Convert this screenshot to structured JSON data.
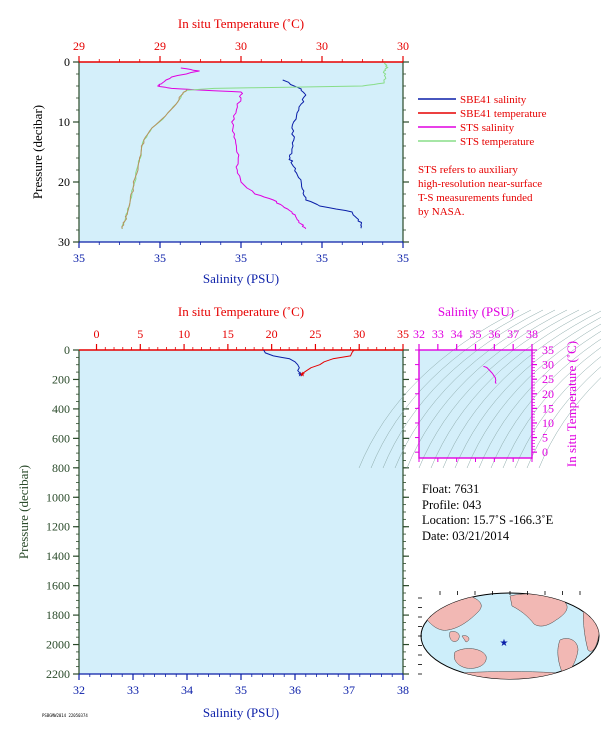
{
  "colors": {
    "red": "#e60000",
    "blue": "#0a1ea8",
    "magenta": "#e000e0",
    "green": "#88dd88",
    "temp_profile": "#b89060",
    "plot_bg": "#d4effa",
    "dark_green": "#2a4a2a",
    "isoline": "#8aa8a8"
  },
  "chart_data": [
    {
      "type": "line",
      "panel": "top",
      "x_top_label": "In situ Temperature (˚C)",
      "x_top_ticks": [
        "29",
        "29",
        "30",
        "30",
        "30"
      ],
      "x_bottom_label": "Salinity (PSU)",
      "x_bottom_ticks": [
        "35",
        "35",
        "35",
        "35",
        "35"
      ],
      "ylabel": "Pressure (decibar)",
      "y_ticks": [
        "0",
        "10",
        "20",
        "30"
      ],
      "ylim": [
        0,
        30
      ],
      "temp_range": [
        28.8,
        30.0
      ],
      "sal_range": [
        34.9,
        35.25
      ],
      "legend": [
        "SBE41 salinity",
        "SBE41 temperature",
        "STS salinity",
        "STS temperature"
      ],
      "note": [
        "STS refers to auxiliary",
        "high-resolution near-surface",
        "T-S measurements funded",
        "by NASA."
      ],
      "series": [
        {
          "name": "SBE41 salinity",
          "color": "blue",
          "p": [
            3.0,
            4.5,
            5.5,
            7,
            9,
            11,
            13,
            15,
            16,
            17,
            18.5,
            20,
            21.5,
            23,
            24,
            25,
            26,
            27,
            27.7
          ],
          "x": [
            35.12,
            35.14,
            35.145,
            35.14,
            35.135,
            35.13,
            35.132,
            35.13,
            35.128,
            35.13,
            35.135,
            35.14,
            35.143,
            35.145,
            35.16,
            35.195,
            35.2,
            35.205,
            35.205
          ]
        },
        {
          "name": "STS salinity",
          "color": "magenta",
          "p": [
            1.0,
            1.5,
            2.5,
            3.5,
            4.0,
            4.4,
            4.7,
            5.0,
            6,
            8,
            10,
            12,
            14,
            16,
            18,
            20,
            22,
            23,
            24,
            25,
            26,
            27,
            27.8
          ],
          "x": [
            35.01,
            35.03,
            35.0,
            34.99,
            34.985,
            35.0,
            35.035,
            35.075,
            35.075,
            35.07,
            35.065,
            35.068,
            35.07,
            35.072,
            35.071,
            35.075,
            35.09,
            35.11,
            35.12,
            35.13,
            35.135,
            35.14,
            35.145
          ]
        },
        {
          "name": "STS temperature",
          "color": "green",
          "p": [
            0.2,
            0.6,
            1.0,
            1.5,
            2.5,
            3.5,
            4.0,
            4.4,
            4.7,
            5.5,
            7,
            9,
            11,
            13,
            15,
            17,
            19,
            21,
            23,
            25,
            26.5,
            27.8
          ],
          "x": [
            29.93,
            29.94,
            29.94,
            29.93,
            29.935,
            29.93,
            29.85,
            29.3,
            29.2,
            29.18,
            29.16,
            29.12,
            29.07,
            29.04,
            29.03,
            29.02,
            29.01,
            29.0,
            28.99,
            28.98,
            28.97,
            28.96
          ]
        },
        {
          "name": "SBE41 temperature",
          "color": "temp_profile",
          "p": [
            4.6,
            5.5,
            7,
            9,
            11,
            13,
            15,
            17,
            19,
            21,
            23,
            25,
            26.5,
            27.8
          ],
          "x": [
            29.2,
            29.18,
            29.16,
            29.12,
            29.07,
            29.04,
            29.03,
            29.02,
            29.01,
            29.0,
            28.99,
            28.98,
            28.97,
            28.96
          ]
        }
      ]
    },
    {
      "type": "line",
      "panel": "bottom",
      "x_top_label": "In situ Temperature (˚C)",
      "x_top_ticks": [
        "0",
        "5",
        "10",
        "15",
        "20",
        "25",
        "30",
        "35"
      ],
      "xlim_top": [
        -2,
        35
      ],
      "x_bottom_label": "Salinity (PSU)",
      "x_bottom_ticks": [
        "32",
        "33",
        "34",
        "35",
        "36",
        "37",
        "38"
      ],
      "xlim_bottom": [
        32,
        38
      ],
      "ylabel": "Pressure (decibar)",
      "y_ticks": [
        "0",
        "200",
        "400",
        "600",
        "800",
        "1000",
        "1200",
        "1400",
        "1600",
        "1800",
        "2000",
        "2200"
      ],
      "ylim": [
        0,
        2200
      ],
      "series": [
        {
          "name": "salinity",
          "color": "blue",
          "p": [
            0,
            20,
            40,
            50,
            60,
            80,
            100,
            120,
            140,
            160
          ],
          "x": [
            35.42,
            35.45,
            35.6,
            35.75,
            35.9,
            36.0,
            36.05,
            36.08,
            36.05,
            36.1
          ]
        },
        {
          "name": "temperature",
          "color": "red",
          "p": [
            0,
            15,
            40,
            60,
            80,
            100,
            120,
            140,
            160
          ],
          "x": [
            29.4,
            29.2,
            29.0,
            27.0,
            26.0,
            25.5,
            24.5,
            24.0,
            23.5
          ]
        }
      ]
    },
    {
      "type": "scatter",
      "panel": "ts-diagram",
      "x_top_label": "Salinity (PSU)",
      "x_ticks": [
        "32",
        "33",
        "34",
        "35",
        "36",
        "37",
        "38"
      ],
      "xlim": [
        32,
        38
      ],
      "ylabel": "In situ Temperature (˚C)",
      "y_ticks": [
        "0",
        "5",
        "10",
        "15",
        "20",
        "25",
        "30",
        "35"
      ],
      "ylim": [
        -2,
        35
      ],
      "series": [
        {
          "name": "profile",
          "color": "magenta",
          "x": [
            35.42,
            35.6,
            35.75,
            35.9,
            36.0,
            36.05,
            36.08,
            36.05,
            36.1
          ],
          "y": [
            29.4,
            29.0,
            28.0,
            27.0,
            26.0,
            25.5,
            24.5,
            24.0,
            23.5
          ]
        }
      ]
    }
  ],
  "info": {
    "float": "Float:  7631",
    "profile": "Profile:  043",
    "location": "Location:  15.7˚S  -166.3˚E",
    "date": "Date:  03/21/2014"
  },
  "map": {
    "marker_lon": -166.3,
    "marker_lat": -15.7
  },
  "footer": "PSBGMW2014 22050374"
}
